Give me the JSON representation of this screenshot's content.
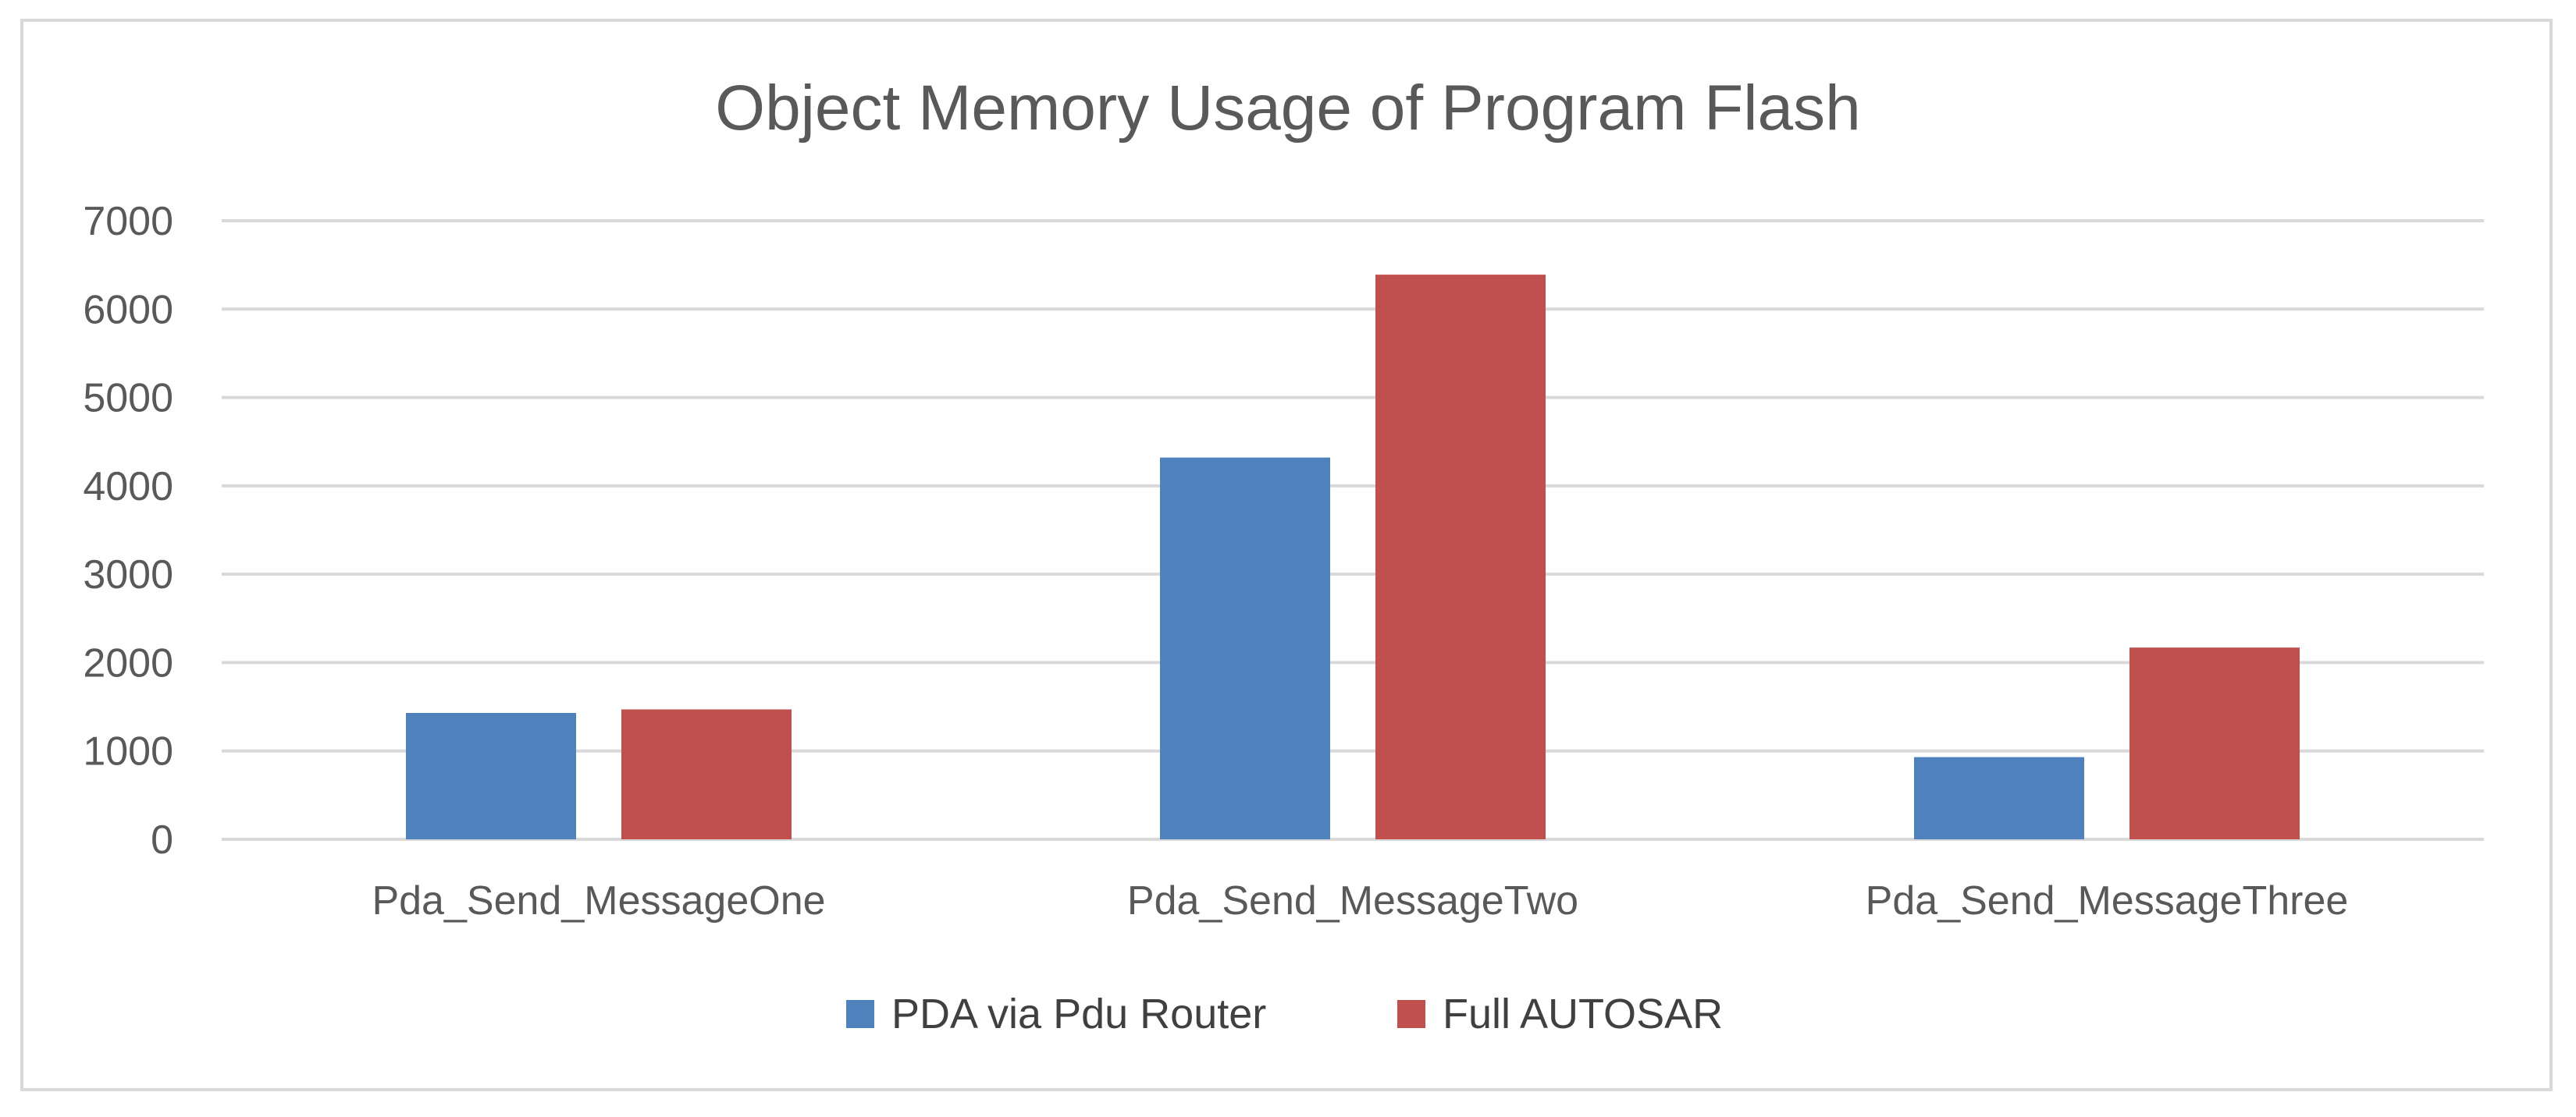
{
  "chart_data": {
    "type": "bar",
    "title": "Object Memory Usage of Program Flash",
    "xlabel": "",
    "ylabel": "",
    "categories": [
      "Pda_Send_MessageOne",
      "Pda_Send_MessageTwo",
      "Pda_Send_MessageThree"
    ],
    "series": [
      {
        "name": "PDA via Pdu Router",
        "values": [
          1430,
          4320,
          930
        ],
        "color": "#4f81bd"
      },
      {
        "name": "Full AUTOSAR",
        "values": [
          1470,
          6390,
          2170
        ],
        "color": "#c0504d"
      }
    ],
    "ylim": [
      0,
      7000
    ],
    "yticks": [
      0,
      1000,
      2000,
      3000,
      4000,
      5000,
      6000,
      7000
    ],
    "grid": true,
    "legend_position": "bottom"
  }
}
